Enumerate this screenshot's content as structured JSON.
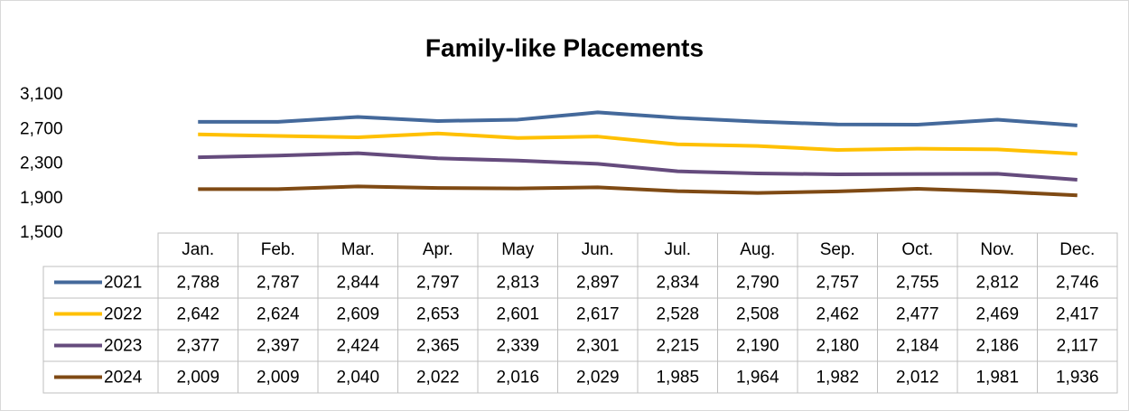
{
  "chart_data": {
    "type": "line",
    "title": "Family-like Placements",
    "categories": [
      "Jan.",
      "Feb.",
      "Mar.",
      "Apr.",
      "May",
      "Jun.",
      "Jul.",
      "Aug.",
      "Sep.",
      "Oct.",
      "Nov.",
      "Dec."
    ],
    "series": [
      {
        "name": "2021",
        "color": "#44699b",
        "values": [
          2788,
          2787,
          2844,
          2797,
          2813,
          2897,
          2834,
          2790,
          2757,
          2755,
          2812,
          2746
        ],
        "value_labels": [
          "2,788",
          "2,787",
          "2,844",
          "2,797",
          "2,813",
          "2,897",
          "2,834",
          "2,790",
          "2,757",
          "2,755",
          "2,812",
          "2,746"
        ]
      },
      {
        "name": "2022",
        "color": "#ffc000",
        "values": [
          2642,
          2624,
          2609,
          2653,
          2601,
          2617,
          2528,
          2508,
          2462,
          2477,
          2469,
          2417
        ],
        "value_labels": [
          "2,642",
          "2,624",
          "2,609",
          "2,653",
          "2,601",
          "2,617",
          "2,528",
          "2,508",
          "2,462",
          "2,477",
          "2,469",
          "2,417"
        ]
      },
      {
        "name": "2023",
        "color": "#654b7d",
        "values": [
          2377,
          2397,
          2424,
          2365,
          2339,
          2301,
          2215,
          2190,
          2180,
          2184,
          2186,
          2117
        ],
        "value_labels": [
          "2,377",
          "2,397",
          "2,424",
          "2,365",
          "2,339",
          "2,301",
          "2,215",
          "2,190",
          "2,180",
          "2,184",
          "2,186",
          "2,117"
        ]
      },
      {
        "name": "2024",
        "color": "#7f4a14",
        "values": [
          2009,
          2009,
          2040,
          2022,
          2016,
          2029,
          1985,
          1964,
          1982,
          2012,
          1981,
          1936
        ],
        "value_labels": [
          "2,009",
          "2,009",
          "2,040",
          "2,022",
          "2,016",
          "2,029",
          "1,985",
          "1,964",
          "1,982",
          "2,012",
          "1,981",
          "1,936"
        ]
      }
    ],
    "ylim": [
      1500,
      3100
    ],
    "yticks": [
      {
        "value": 1500,
        "label": "1,500"
      },
      {
        "value": 1900,
        "label": "1,900"
      },
      {
        "value": 2300,
        "label": "2,300"
      },
      {
        "value": 2700,
        "label": "2,700"
      },
      {
        "value": 3100,
        "label": "3,100"
      }
    ],
    "grid": false
  }
}
